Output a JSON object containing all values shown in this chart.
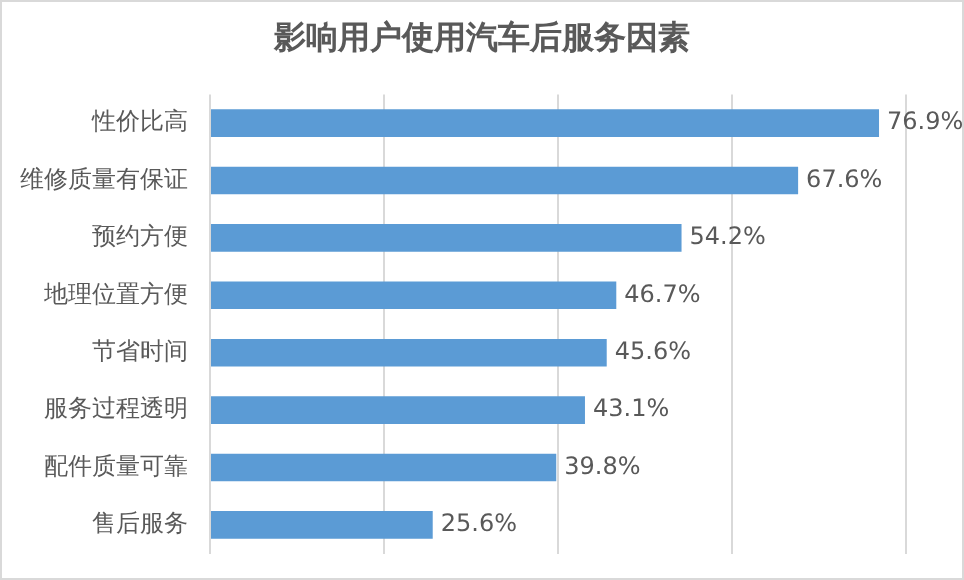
{
  "chart_data": {
    "type": "bar",
    "orientation": "horizontal",
    "title": "影响用户使用汽车后服务因素",
    "categories": [
      "性价比高",
      "维修质量有保证",
      "预约方便",
      "地理位置方便",
      "节省时间",
      "服务过程透明",
      "配件质量可靠",
      "售后服务"
    ],
    "values": [
      76.9,
      67.6,
      54.2,
      46.7,
      45.6,
      43.1,
      39.8,
      25.6
    ],
    "value_labels": [
      "76.9%",
      "67.6%",
      "54.2%",
      "46.7%",
      "45.6%",
      "43.1%",
      "39.8%",
      "25.6%"
    ],
    "color": "#5b9bd5",
    "xlim": [
      0,
      80
    ],
    "xticks": [
      {
        "value": 0,
        "label": null
      },
      {
        "value": 20,
        "label": null
      },
      {
        "value": 40,
        "label": null
      },
      {
        "value": 60,
        "label": null
      },
      {
        "value": 80,
        "label": null
      }
    ],
    "tick_labels": "y",
    "grid": "x"
  }
}
